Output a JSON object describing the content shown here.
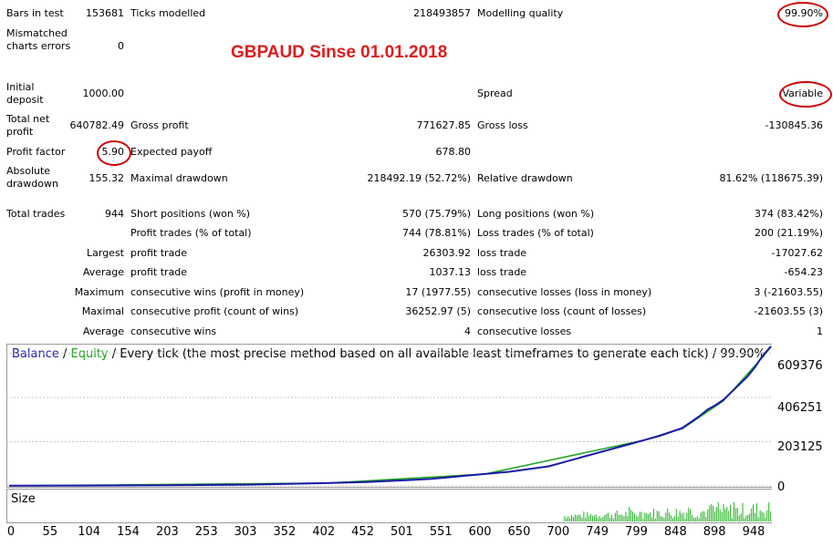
{
  "report": {
    "headline": "GBPAUD Sinse 01.01.2018",
    "bars_in_test": {
      "label": "Bars in test",
      "value": "153681"
    },
    "ticks_modelled": {
      "label": "Ticks modelled",
      "value": "218493857"
    },
    "modelling_quality": {
      "label": "Modelling quality",
      "value": "99.90%"
    },
    "mismatched_errors": {
      "label": "Mismatched charts errors",
      "value": "0"
    },
    "initial_deposit": {
      "label": "Initial deposit",
      "value": "1000.00"
    },
    "spread": {
      "label": "Spread",
      "value": "Variable"
    },
    "total_net_profit": {
      "label": "Total net profit",
      "value": "640782.49"
    },
    "gross_profit": {
      "label": "Gross profit",
      "value": "771627.85"
    },
    "gross_loss": {
      "label": "Gross loss",
      "value": "-130845.36"
    },
    "profit_factor": {
      "label": "Profit factor",
      "value": "5.90"
    },
    "expected_payoff": {
      "label": "Expected payoff",
      "value": "678.80"
    },
    "absolute_drawdown": {
      "label": "Absolute drawdown",
      "value": "155.32"
    },
    "maximal_drawdown": {
      "label": "Maximal drawdown",
      "value": "218492.19 (52.72%)"
    },
    "relative_drawdown": {
      "label": "Relative drawdown",
      "value": "81.62% (118675.39)"
    },
    "total_trades": {
      "label": "Total trades",
      "value": "944"
    },
    "short_positions": {
      "label": "Short positions (won %)",
      "value": "570 (75.79%)"
    },
    "long_positions": {
      "label": "Long positions (won %)",
      "value": "374 (83.42%)"
    },
    "profit_trades": {
      "label": "Profit trades (% of total)",
      "value": "744 (78.81%)"
    },
    "loss_trades": {
      "label": "Loss trades (% of total)",
      "value": "200 (21.19%)"
    },
    "largest": {
      "prefix": "Largest",
      "profit_label": "profit trade",
      "profit_value": "26303.92",
      "loss_label": "loss trade",
      "loss_value": "-17027.62"
    },
    "average": {
      "prefix": "Average",
      "profit_label": "profit trade",
      "profit_value": "1037.13",
      "loss_label": "loss trade",
      "loss_value": "-654.23"
    },
    "maximum": {
      "prefix": "Maximum",
      "profit_label": "consecutive wins (profit in money)",
      "profit_value": "17 (1977.55)",
      "loss_label": "consecutive losses (loss in money)",
      "loss_value": "3 (-21603.55)"
    },
    "maximal": {
      "prefix": "Maximal",
      "profit_label": "consecutive profit (count of wins)",
      "profit_value": "36252.97 (5)",
      "loss_label": "consecutive loss (count of losses)",
      "loss_value": "-21603.55 (3)"
    },
    "average_consecutive": {
      "prefix": "Average",
      "profit_label": "consecutive wins",
      "profit_value": "4",
      "loss_label": "consecutive losses",
      "loss_value": "1"
    }
  },
  "chart_legend": {
    "balance": "Balance",
    "sep1": " / ",
    "equity": "Equity",
    "rest": " / Every tick (the most precise method based on all available least timeframes to generate each tick) / 99.90%"
  },
  "size_label": "Size",
  "colors": {
    "balance": "#1a1aa6",
    "equity": "#1aa31a",
    "size_bars": "#22b022",
    "highlight": "#d00000",
    "headline": "#e01b1b"
  },
  "chart_data": {
    "type": "line",
    "title": "",
    "ylim": [
      0,
      640000
    ],
    "xlim": [
      0,
      960
    ],
    "y_ticks": [
      "609376",
      "406251",
      "203125",
      "0"
    ],
    "y_tick_values": [
      609376,
      406251,
      203125,
      0
    ],
    "x_ticks": [
      "0",
      "55",
      "104",
      "154",
      "203",
      "253",
      "303",
      "352",
      "402",
      "452",
      "501",
      "551",
      "600",
      "650",
      "700",
      "749",
      "799",
      "848",
      "898",
      "948"
    ],
    "series": [
      {
        "name": "Balance",
        "x": [
          0,
          100,
          200,
          300,
          350,
          400,
          450,
          500,
          530,
          550,
          570,
          600,
          630,
          650,
          680,
          700,
          720,
          740,
          760,
          780,
          800,
          820,
          840,
          848,
          860,
          870,
          880,
          890,
          900,
          910,
          920,
          930,
          940,
          948,
          960
        ],
        "y": [
          1000,
          1500,
          3000,
          6000,
          9000,
          13000,
          18000,
          26000,
          32000,
          38000,
          45000,
          55000,
          65000,
          75000,
          90000,
          110000,
          130000,
          150000,
          170000,
          190000,
          210000,
          230000,
          255000,
          265000,
          295000,
          320000,
          350000,
          370000,
          395000,
          430000,
          465000,
          500000,
          545000,
          590000,
          640782
        ]
      },
      {
        "name": "Equity",
        "x": [
          0,
          400,
          600,
          800,
          840,
          848,
          900,
          948,
          960
        ],
        "y": [
          1000,
          13000,
          55000,
          210000,
          255000,
          262000,
          390000,
          585000,
          638000
        ]
      }
    ],
    "size_bars": {
      "x_start": 700,
      "x_end": 960
    }
  }
}
